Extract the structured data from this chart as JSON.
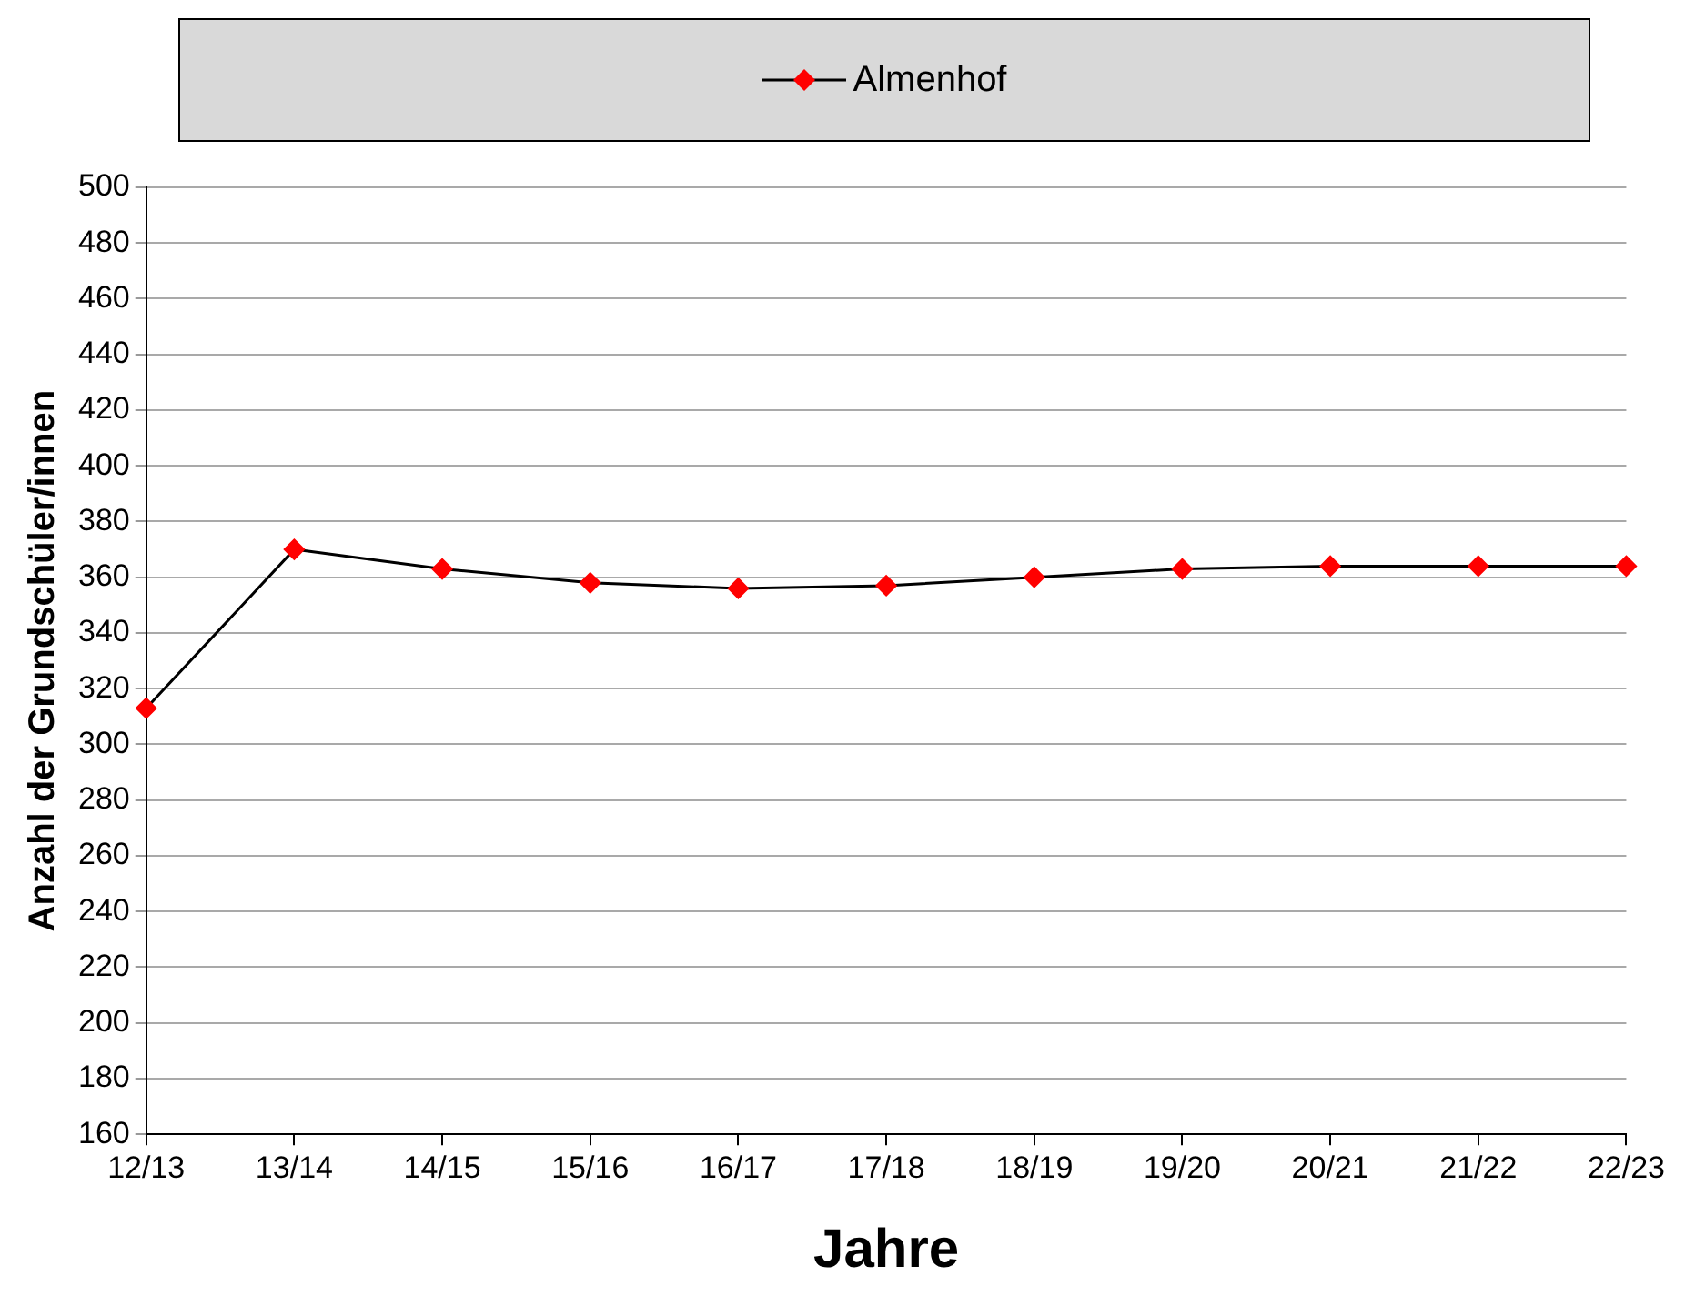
{
  "chart_data": {
    "type": "line",
    "xlabel": "Jahre",
    "ylabel": "Anzahl der Grundschüler/innen",
    "categories": [
      "12/13",
      "13/14",
      "14/15",
      "15/16",
      "16/17",
      "17/18",
      "18/19",
      "19/20",
      "20/21",
      "21/22",
      "22/23"
    ],
    "series": [
      {
        "name": "Almenhof",
        "color": "#000000",
        "colors": [
          "#ff0000",
          "#ff0000",
          "#ff0000",
          "#ff0000",
          "#ff0000",
          "#ff0000",
          "#ff0000",
          "#ff0000",
          "#ff0000",
          "#ff0000",
          "#ff0000"
        ],
        "values": [
          313,
          370,
          363,
          358,
          356,
          357,
          360,
          363,
          364,
          364,
          364
        ]
      }
    ],
    "ylim": [
      160,
      500
    ],
    "yticks": [
      160,
      180,
      200,
      220,
      240,
      260,
      280,
      300,
      320,
      340,
      360,
      380,
      400,
      420,
      440,
      460,
      480,
      500
    ],
    "grid": "y",
    "legend": "top",
    "marker": "diamond",
    "line_style": "solid"
  }
}
